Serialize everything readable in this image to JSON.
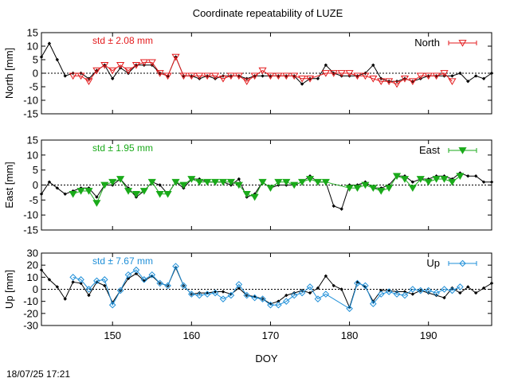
{
  "title": "Coordinate repeatability of LUZE",
  "timestamp": "18/07/25 17:21",
  "chart_data": [
    {
      "type": "line",
      "ylabel": "North [mm]",
      "ylim": [
        -15,
        15
      ],
      "yticks": [
        -15,
        -10,
        -5,
        0,
        5,
        10,
        15
      ],
      "xlim": [
        141,
        198
      ],
      "xticks": [
        150,
        160,
        170,
        180,
        190
      ],
      "show_xtick_labels": false,
      "std_label": "std ± 2.08 mm",
      "legend": "North",
      "color": "#e31a1c",
      "marker": "triangle-down-open",
      "black_series": {
        "x": [
          141,
          142,
          143,
          144,
          145,
          146,
          147,
          148,
          149,
          150,
          151,
          152,
          153,
          154,
          155,
          156,
          157,
          158,
          159,
          160,
          161,
          162,
          163,
          164,
          165,
          166,
          167,
          168,
          169,
          170,
          171,
          172,
          173,
          174,
          175,
          176,
          177,
          178,
          179,
          180,
          181,
          182,
          183,
          184,
          185,
          186,
          187,
          188,
          189,
          190,
          191,
          192,
          193,
          194,
          195,
          196,
          197,
          198
        ],
        "y": [
          6,
          11,
          5,
          -1,
          0,
          0,
          -2,
          1,
          3,
          -2,
          2,
          0,
          3,
          3,
          3,
          0,
          -1,
          6,
          -1,
          -1,
          -2,
          -1,
          -2,
          -1,
          -1,
          -1,
          -2,
          -1,
          -1,
          -1,
          -1,
          -1,
          -1,
          -4,
          -2,
          -2,
          3,
          0,
          -1,
          -1,
          -1,
          0,
          3,
          -2,
          -3,
          -3,
          -2,
          -3,
          -2,
          -1,
          -1,
          -1,
          -1,
          0,
          -3,
          -1,
          -2,
          0
        ]
      },
      "color_series": {
        "x": [
          145,
          146,
          147,
          148,
          149,
          150,
          151,
          152,
          153,
          154,
          155,
          156,
          157,
          158,
          159,
          160,
          161,
          162,
          163,
          164,
          165,
          166,
          167,
          168,
          169,
          170,
          171,
          172,
          173,
          174,
          175,
          177,
          178,
          179,
          180,
          181,
          182,
          183,
          184,
          185,
          186,
          187,
          188,
          189,
          190,
          191,
          192,
          193
        ],
        "y": [
          -1,
          -1,
          -3,
          1,
          3,
          1,
          3,
          1,
          3,
          4,
          4,
          0,
          -1,
          6,
          -1,
          -1,
          -1,
          -1,
          -1,
          -2,
          -1,
          -1,
          -3,
          -1,
          1,
          -1,
          -1,
          -1,
          -1,
          -2,
          -2,
          0,
          0,
          0,
          0,
          -1,
          -1,
          -2,
          -3,
          -3,
          -4,
          -2,
          -3,
          -1,
          -1,
          -1,
          0,
          -3
        ]
      }
    },
    {
      "type": "line",
      "ylabel": "East [mm]",
      "ylim": [
        -15,
        15
      ],
      "yticks": [
        -15,
        -10,
        -5,
        0,
        5,
        10,
        15
      ],
      "xlim": [
        141,
        198
      ],
      "xticks": [
        150,
        160,
        170,
        180,
        190
      ],
      "show_xtick_labels": false,
      "std_label": "std ± 1.95 mm",
      "legend": "East",
      "color": "#1aaa1a",
      "marker": "triangle-down-filled",
      "black_series": {
        "x": [
          141,
          142,
          143,
          144,
          145,
          146,
          147,
          148,
          149,
          150,
          151,
          152,
          153,
          154,
          155,
          156,
          157,
          158,
          159,
          160,
          161,
          162,
          163,
          164,
          165,
          166,
          167,
          168,
          169,
          170,
          171,
          172,
          173,
          174,
          175,
          176,
          177,
          178,
          179,
          180,
          181,
          182,
          183,
          184,
          185,
          186,
          187,
          188,
          189,
          190,
          191,
          192,
          193,
          194,
          195,
          196,
          197,
          198
        ],
        "y": [
          -3,
          1,
          -1,
          -3,
          -2,
          -1,
          -1,
          -4,
          0,
          0,
          2,
          -1,
          -4,
          -2,
          1,
          0,
          -3,
          1,
          -1,
          2,
          2,
          1,
          1,
          1,
          0,
          2,
          -4,
          -3,
          1,
          -1,
          0,
          0,
          0,
          1,
          3,
          1,
          1,
          -7,
          -8,
          0,
          0,
          1,
          -1,
          -1,
          0,
          3,
          3,
          1,
          2,
          2,
          3,
          3,
          2,
          4,
          3,
          3,
          1,
          1
        ]
      },
      "color_series": {
        "x": [
          145,
          146,
          147,
          148,
          149,
          150,
          151,
          152,
          153,
          154,
          155,
          156,
          157,
          158,
          159,
          160,
          161,
          162,
          163,
          164,
          165,
          166,
          167,
          168,
          169,
          170,
          171,
          172,
          173,
          174,
          175,
          176,
          177,
          180,
          181,
          182,
          183,
          184,
          185,
          186,
          187,
          188,
          189,
          190,
          191,
          192,
          193,
          194
        ],
        "y": [
          -3,
          -2,
          -2,
          -6,
          0,
          1,
          2,
          -2,
          -3,
          -2,
          1,
          -3,
          -3,
          1,
          0,
          2,
          1,
          1,
          1,
          1,
          1,
          0,
          -3,
          -4,
          1,
          -1,
          1,
          1,
          0,
          1,
          2,
          1,
          1,
          -1,
          -1,
          0,
          -1,
          -2,
          -1,
          3,
          2,
          -1,
          2,
          1,
          2,
          2,
          1,
          3
        ]
      }
    },
    {
      "type": "line",
      "ylabel": "Up [mm]",
      "ylim": [
        -30,
        30
      ],
      "yticks": [
        -30,
        -20,
        -10,
        0,
        10,
        20,
        30
      ],
      "xlim": [
        141,
        198
      ],
      "xticks": [
        150,
        160,
        170,
        180,
        190
      ],
      "show_xtick_labels": true,
      "xlabel": "DOY",
      "std_label": "std ± 7.67 mm",
      "legend": "Up",
      "color": "#1f8fd8",
      "marker": "diamond-open",
      "black_series": {
        "x": [
          141,
          142,
          143,
          144,
          145,
          146,
          147,
          148,
          149,
          150,
          151,
          152,
          153,
          154,
          155,
          156,
          157,
          158,
          159,
          160,
          161,
          162,
          163,
          164,
          165,
          166,
          167,
          168,
          169,
          170,
          171,
          172,
          173,
          174,
          175,
          176,
          177,
          178,
          179,
          180,
          181,
          182,
          183,
          184,
          185,
          186,
          187,
          188,
          189,
          190,
          191,
          192,
          193,
          194,
          195,
          196,
          197,
          198
        ],
        "y": [
          16,
          8,
          2,
          -8,
          6,
          5,
          -5,
          6,
          3,
          -11,
          -1,
          9,
          13,
          7,
          11,
          5,
          3,
          18,
          3,
          -4,
          -3,
          -3,
          -2,
          -2,
          -4,
          1,
          -5,
          -6,
          -8,
          -12,
          -10,
          -5,
          -3,
          -1,
          -3,
          1,
          11,
          3,
          0,
          -15,
          6,
          2,
          -10,
          -1,
          -1,
          -2,
          -2,
          -4,
          -1,
          -3,
          -5,
          -7,
          1,
          -3,
          2,
          -3,
          1,
          5
        ]
      },
      "color_series": {
        "x": [
          145,
          146,
          147,
          148,
          149,
          150,
          151,
          152,
          153,
          154,
          155,
          156,
          157,
          158,
          159,
          160,
          161,
          162,
          163,
          164,
          165,
          166,
          167,
          168,
          169,
          170,
          171,
          172,
          173,
          174,
          175,
          176,
          177,
          180,
          181,
          182,
          183,
          184,
          185,
          186,
          187,
          188,
          189,
          190,
          191,
          192,
          193,
          194
        ],
        "y": [
          10,
          8,
          0,
          7,
          8,
          -13,
          -1,
          12,
          16,
          8,
          12,
          5,
          3,
          19,
          3,
          -4,
          -5,
          -4,
          -3,
          -8,
          -5,
          4,
          -5,
          -7,
          -8,
          -13,
          -13,
          -10,
          -5,
          -3,
          2,
          -8,
          -4,
          -16,
          5,
          3,
          -12,
          -4,
          -2,
          -4,
          -5,
          0,
          -1,
          -1,
          -3,
          0,
          -1,
          2
        ]
      }
    }
  ]
}
